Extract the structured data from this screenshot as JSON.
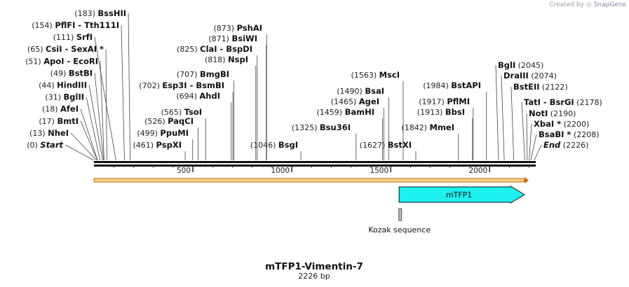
{
  "credit": {
    "prefix": "Created by",
    "brand": "SnapGene"
  },
  "plasmid": {
    "name": "mTFP1-Vimentin-7",
    "length_label": "2226 bp",
    "length": 2226
  },
  "ruler": {
    "ticks": [
      500,
      1000,
      1500,
      2000
    ]
  },
  "colors": {
    "cds_fill": "#1ef0f0",
    "orf_fill": "#fcd58a",
    "orf_stroke": "#c8640a",
    "kozak_fill": "#bbbbbb"
  },
  "features": {
    "cds": {
      "label": "mTFP1",
      "start": 1553,
      "end": 2226
    },
    "kozak": {
      "label": "Kozak sequence",
      "pos": 1548
    },
    "orf": {
      "start": 0,
      "end": 2226
    }
  },
  "left_sites": [
    {
      "pos": 0,
      "pos_label": "(0)",
      "name": "Start",
      "special": true
    },
    {
      "pos": 13,
      "pos_label": "(13)",
      "name": "NheI"
    },
    {
      "pos": 17,
      "pos_label": "(17)",
      "name": "BmtI"
    },
    {
      "pos": 18,
      "pos_label": "(18)",
      "name": "AfeI"
    },
    {
      "pos": 31,
      "pos_label": "(31)",
      "name": "BglII"
    },
    {
      "pos": 44,
      "pos_label": "(44)",
      "name": "HindIII"
    },
    {
      "pos": 49,
      "pos_label": "(49)",
      "name": "BstBI"
    },
    {
      "pos": 51,
      "pos_label": "(51)",
      "name": "ApoI  -  EcoRI"
    },
    {
      "pos": 65,
      "pos_label": "(65)",
      "name": "CsiI  -  SexAI *"
    },
    {
      "pos": 111,
      "pos_label": "(111)",
      "name": "SrfI"
    },
    {
      "pos": 154,
      "pos_label": "(154)",
      "name": "PflFI  -  Tth111I"
    },
    {
      "pos": 183,
      "pos_label": "(183)",
      "name": "BssHII"
    }
  ],
  "mid_sites": [
    {
      "pos": 461,
      "pos_label": "(461)",
      "name": "PspXI"
    },
    {
      "pos": 499,
      "pos_label": "(499)",
      "name": "PpuMI"
    },
    {
      "pos": 526,
      "pos_label": "(526)",
      "name": "PaqCI"
    },
    {
      "pos": 565,
      "pos_label": "(565)",
      "name": "TsoI"
    },
    {
      "pos": 694,
      "pos_label": "(694)",
      "name": "AhdI"
    },
    {
      "pos": 702,
      "pos_label": "(702)",
      "name": "Esp3I  -  BsmBI"
    },
    {
      "pos": 707,
      "pos_label": "(707)",
      "name": "BmgBI"
    },
    {
      "pos": 818,
      "pos_label": "(818)",
      "name": "NspI"
    },
    {
      "pos": 825,
      "pos_label": "(825)",
      "name": "ClaI  -  BspDI"
    },
    {
      "pos": 871,
      "pos_label": "(871)",
      "name": "BsiWI"
    },
    {
      "pos": 873,
      "pos_label": "(873)",
      "name": "PshAI"
    },
    {
      "pos": 1046,
      "pos_label": "(1046)",
      "name": "BsgI"
    },
    {
      "pos": 1325,
      "pos_label": "(1325)",
      "name": "Bsu36I"
    },
    {
      "pos": 1459,
      "pos_label": "(1459)",
      "name": "BamHI"
    },
    {
      "pos": 1465,
      "pos_label": "(1465)",
      "name": "AgeI"
    },
    {
      "pos": 1490,
      "pos_label": "(1490)",
      "name": "BsaI"
    },
    {
      "pos": 1563,
      "pos_label": "(1563)",
      "name": "MscI"
    },
    {
      "pos": 1627,
      "pos_label": "(1627)",
      "name": "BstXI"
    },
    {
      "pos": 1842,
      "pos_label": "(1842)",
      "name": "MmeI"
    },
    {
      "pos": 1913,
      "pos_label": "(1913)",
      "name": "BbsI"
    },
    {
      "pos": 1917,
      "pos_label": "(1917)",
      "name": "PflMI"
    },
    {
      "pos": 1984,
      "pos_label": "(1984)",
      "name": "BstAPI"
    }
  ],
  "right_sites": [
    {
      "pos": 2045,
      "pos_label": "(2045)",
      "name": "BglI"
    },
    {
      "pos": 2074,
      "pos_label": "(2074)",
      "name": "DraIII"
    },
    {
      "pos": 2122,
      "pos_label": "(2122)",
      "name": "BstEII"
    },
    {
      "pos": 2178,
      "pos_label": "(2178)",
      "name": "TatI  -  BsrGI"
    },
    {
      "pos": 2190,
      "pos_label": "(2190)",
      "name": "NotI"
    },
    {
      "pos": 2200,
      "pos_label": "(2200)",
      "name": "XbaI *"
    },
    {
      "pos": 2208,
      "pos_label": "(2208)",
      "name": "BsaBI *"
    },
    {
      "pos": 2226,
      "pos_label": "(2226)",
      "name": "End",
      "special": true
    }
  ]
}
